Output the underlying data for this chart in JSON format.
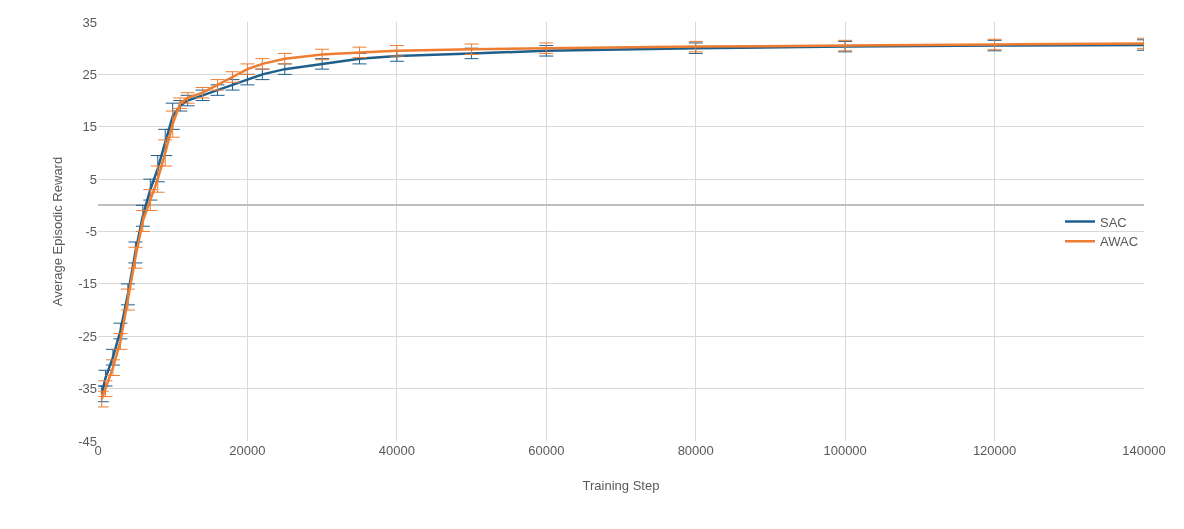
{
  "chart_data": {
    "type": "line",
    "xlabel": "Training Step",
    "ylabel": "Average Episodic Reward",
    "x": [
      500,
      1000,
      2000,
      3000,
      4000,
      5000,
      6000,
      7000,
      8000,
      9000,
      10000,
      11000,
      12000,
      14000,
      16000,
      18000,
      20000,
      22000,
      25000,
      30000,
      35000,
      40000,
      50000,
      60000,
      80000,
      100000,
      120000,
      140000
    ],
    "series": [
      {
        "name": "SAC",
        "color": "#1f5f8b",
        "values": [
          -36,
          -33,
          -29,
          -24,
          -17,
          -9,
          -2,
          3,
          7,
          12,
          17,
          19,
          20,
          21,
          22,
          23,
          24,
          25,
          26,
          27,
          28,
          28.5,
          29,
          29.5,
          30,
          30.3,
          30.5,
          30.6
        ],
        "errors": [
          1.5,
          1.5,
          1.5,
          1.5,
          2,
          2,
          2,
          2,
          2.5,
          2.5,
          2.5,
          1,
          1,
          1,
          1,
          1,
          1,
          1,
          1,
          1,
          1,
          1,
          1,
          1,
          1,
          1,
          1,
          1
        ]
      },
      {
        "name": "AWAC",
        "color": "#ed7d31",
        "values": [
          -37,
          -35,
          -31,
          -26,
          -18,
          -10,
          -3,
          1,
          5,
          10,
          15.5,
          19.5,
          20.5,
          21.5,
          23,
          24.5,
          26,
          27,
          28,
          28.8,
          29.2,
          29.5,
          29.8,
          30,
          30.3,
          30.5,
          30.7,
          30.9
        ],
        "errors": [
          1.5,
          1.5,
          1.5,
          1.5,
          2,
          2,
          2,
          2,
          2.5,
          2.5,
          2.5,
          1,
          1,
          1,
          1,
          1,
          1,
          1,
          1,
          1,
          1,
          1,
          1,
          1,
          1,
          1,
          1,
          1
        ]
      }
    ],
    "xlim": [
      0,
      140000
    ],
    "xticks": [
      0,
      20000,
      40000,
      60000,
      80000,
      100000,
      120000,
      140000
    ],
    "ylim": [
      -45,
      35
    ],
    "yticks": [
      -45,
      -35,
      -25,
      -15,
      -5,
      5,
      15,
      25,
      35
    ],
    "grid": true,
    "legend": "right",
    "line_style": "solid"
  }
}
